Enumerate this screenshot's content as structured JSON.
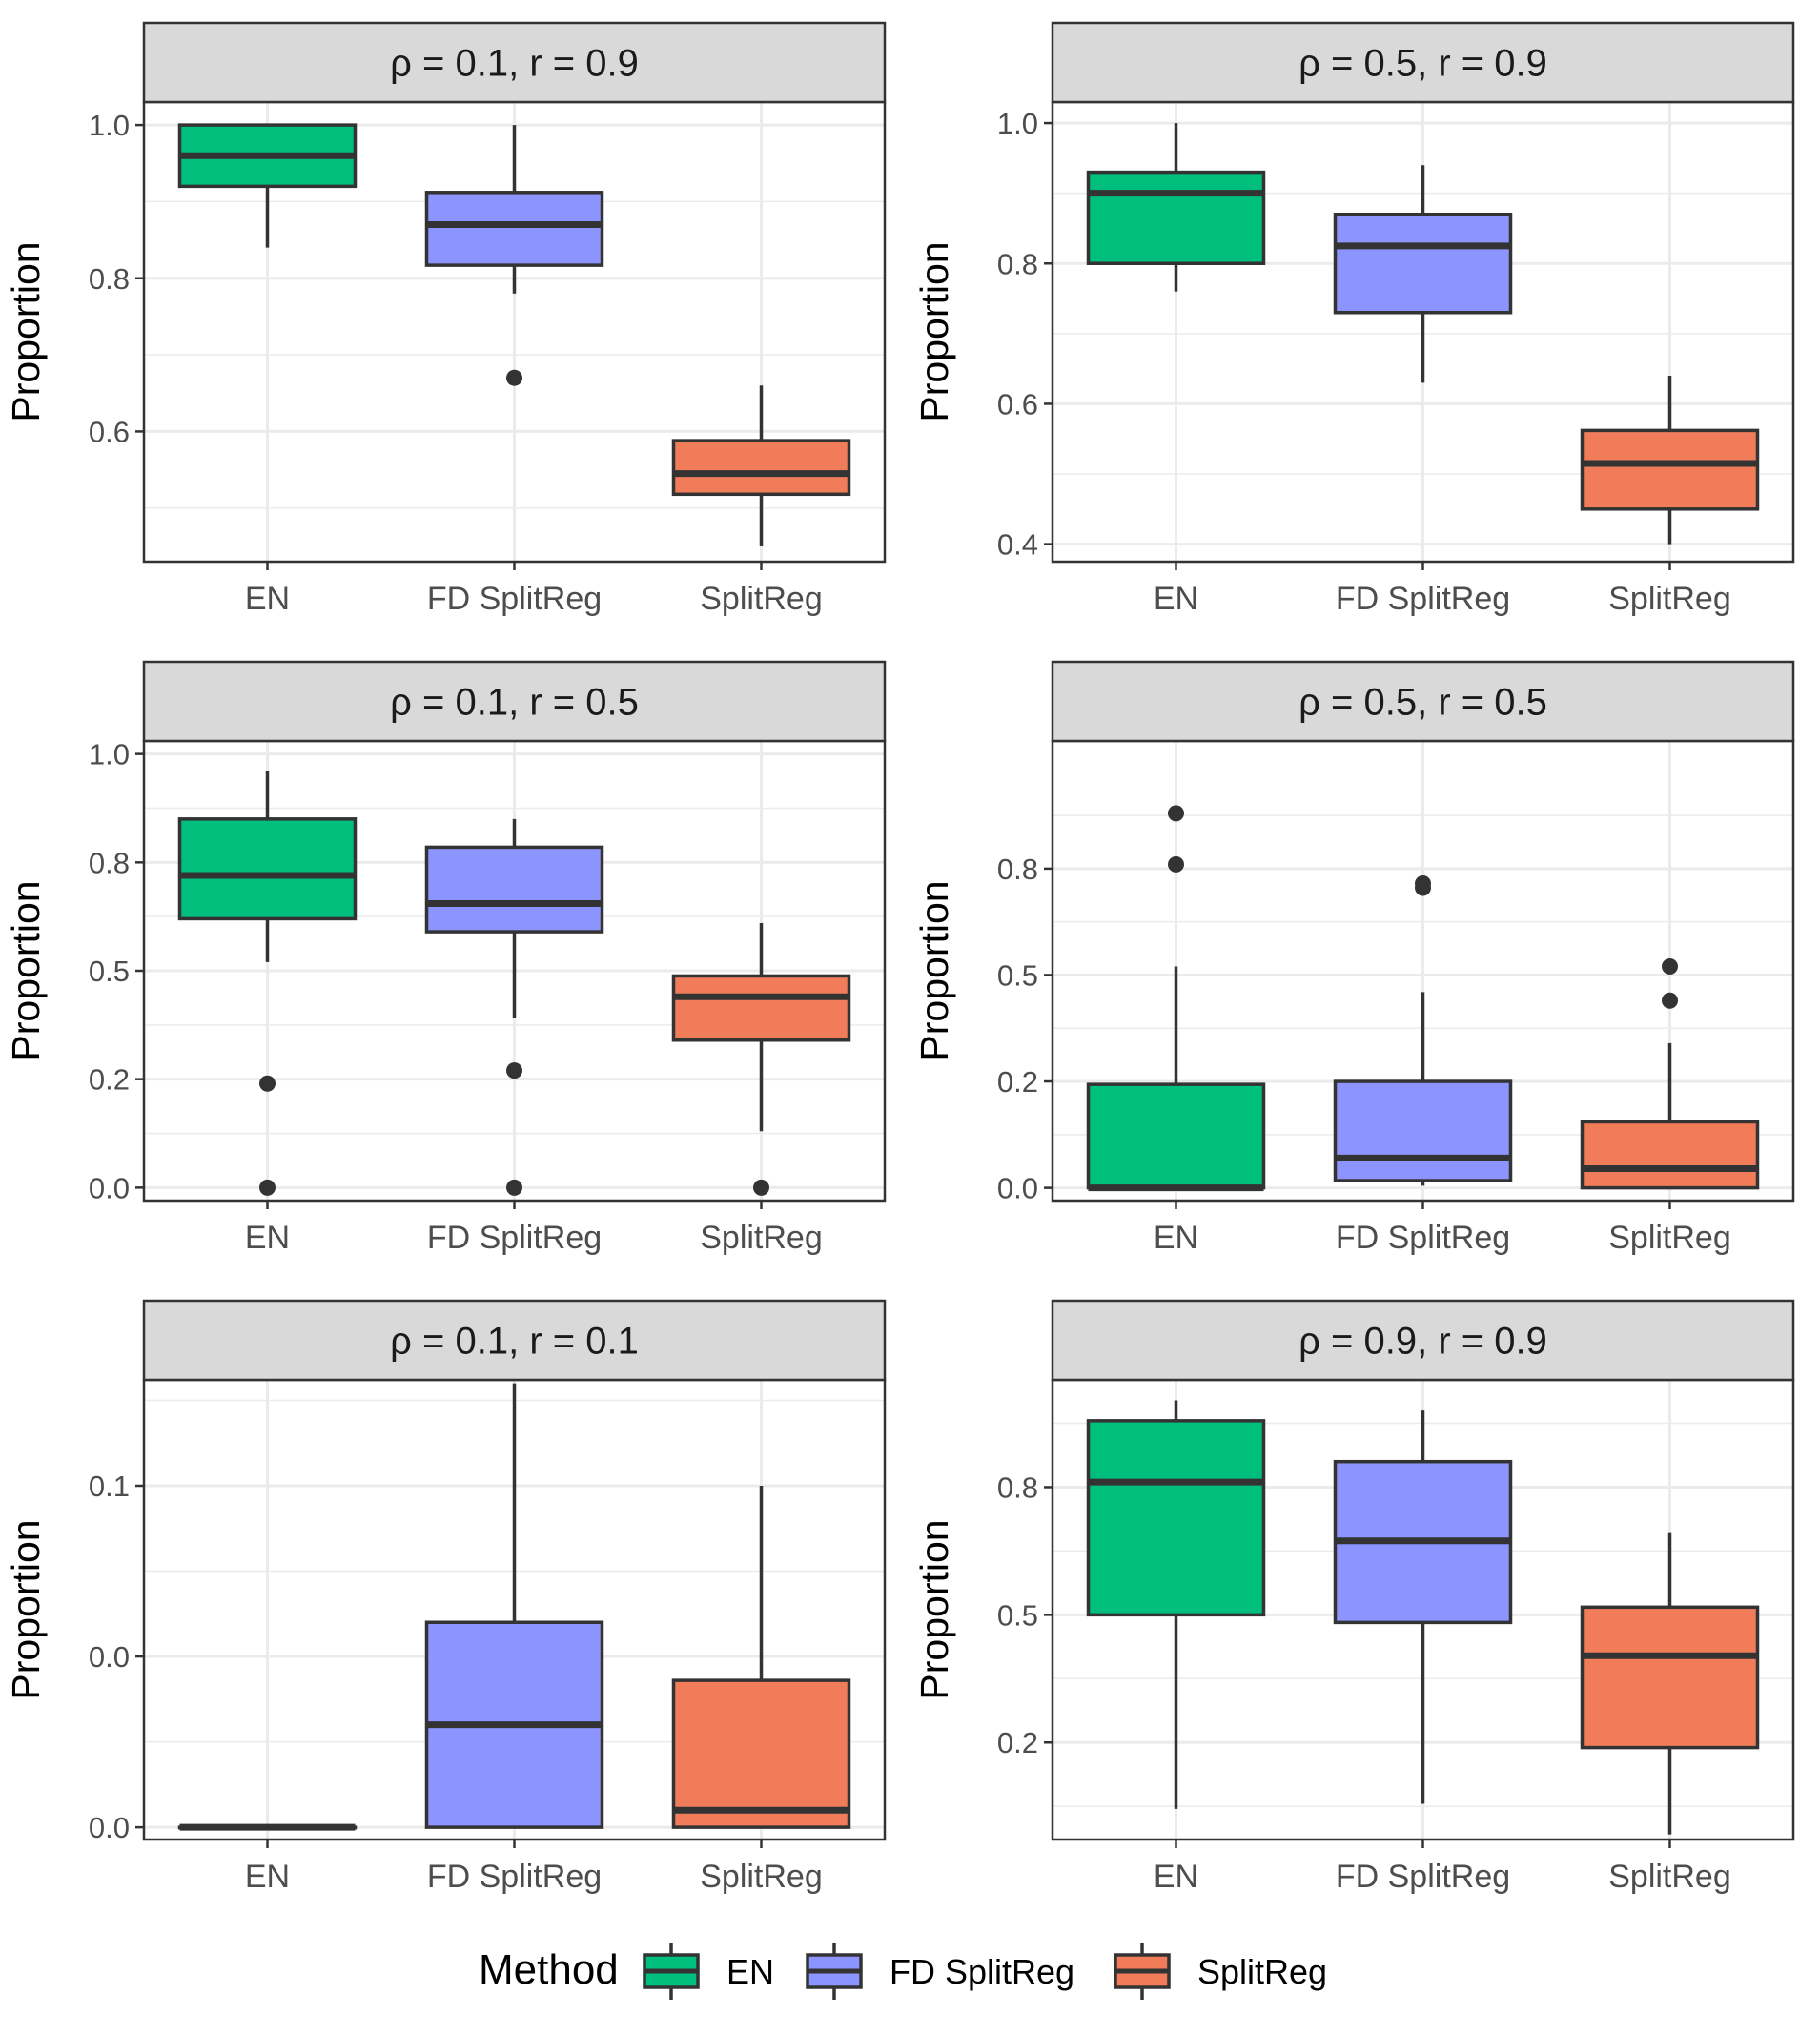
{
  "chart_data": {
    "type": "boxplot",
    "ylabel": "Proportion",
    "categories": [
      "EN",
      "FD SplitReg",
      "SplitReg"
    ],
    "colors": {
      "EN": "#00BF7D",
      "FD SplitReg": "#8C94FF",
      "SplitReg": "#F07C5A",
      "strip_bg": "#D9D9D9",
      "grid": "#EBEBEB",
      "ink": "#333333"
    },
    "legend": {
      "title": "Method",
      "entries": [
        "EN",
        "FD SplitReg",
        "SplitReg"
      ],
      "position": "bottom"
    },
    "panels": [
      {
        "title": "ρ = 0.1,  r = 0.9",
        "ylim": [
          0.43,
          1.03
        ],
        "ticks": [
          {
            "v": 0.6,
            "label": "0.6"
          },
          {
            "v": 0.8,
            "label": "0.8"
          },
          {
            "v": 1.0,
            "label": "1.0"
          }
        ],
        "minor": [
          0.5,
          0.7,
          0.9
        ],
        "boxes": [
          {
            "category": "EN",
            "whisker_low": 0.84,
            "q1": 0.92,
            "median": 0.96,
            "q3": 1.0,
            "whisker_high": 1.0,
            "outliers": []
          },
          {
            "category": "FD SplitReg",
            "whisker_low": 0.78,
            "q1": 0.817,
            "median": 0.87,
            "q3": 0.912,
            "whisker_high": 1.0,
            "outliers": [
              0.67
            ]
          },
          {
            "category": "SplitReg",
            "whisker_low": 0.45,
            "q1": 0.518,
            "median": 0.545,
            "q3": 0.588,
            "whisker_high": 0.66,
            "outliers": []
          }
        ]
      },
      {
        "title": "ρ = 0.5,  r = 0.9",
        "ylim": [
          0.375,
          1.03
        ],
        "ticks": [
          {
            "v": 0.4,
            "label": "0.4"
          },
          {
            "v": 0.6,
            "label": "0.6"
          },
          {
            "v": 0.8,
            "label": "0.8"
          },
          {
            "v": 1.0,
            "label": "1.0"
          }
        ],
        "minor": [
          0.5,
          0.7,
          0.9
        ],
        "boxes": [
          {
            "category": "EN",
            "whisker_low": 0.76,
            "q1": 0.8,
            "median": 0.9,
            "q3": 0.93,
            "whisker_high": 1.0,
            "outliers": []
          },
          {
            "category": "FD SplitReg",
            "whisker_low": 0.63,
            "q1": 0.73,
            "median": 0.825,
            "q3": 0.87,
            "whisker_high": 0.94,
            "outliers": []
          },
          {
            "category": "SplitReg",
            "whisker_low": 0.4,
            "q1": 0.45,
            "median": 0.515,
            "q3": 0.562,
            "whisker_high": 0.64,
            "outliers": []
          }
        ]
      },
      {
        "title": "ρ = 0.1,  r = 0.5",
        "ylim": [
          -0.03,
          1.03
        ],
        "ticks": [
          {
            "v": 0.0,
            "label": "0.0"
          },
          {
            "v": 0.25,
            "label": "0.2"
          },
          {
            "v": 0.5,
            "label": "0.5"
          },
          {
            "v": 0.75,
            "label": "0.8"
          },
          {
            "v": 1.0,
            "label": "1.0"
          }
        ],
        "minor": [
          0.125,
          0.375,
          0.625,
          0.875
        ],
        "boxes": [
          {
            "category": "EN",
            "whisker_low": 0.52,
            "q1": 0.62,
            "median": 0.72,
            "q3": 0.85,
            "whisker_high": 0.96,
            "outliers": [
              0.0,
              0.24
            ]
          },
          {
            "category": "FD SplitReg",
            "whisker_low": 0.39,
            "q1": 0.59,
            "median": 0.655,
            "q3": 0.785,
            "whisker_high": 0.85,
            "outliers": [
              0.0,
              0.27
            ]
          },
          {
            "category": "SplitReg",
            "whisker_low": 0.13,
            "q1": 0.34,
            "median": 0.44,
            "q3": 0.488,
            "whisker_high": 0.61,
            "outliers": [
              0.0
            ]
          }
        ]
      },
      {
        "title": "ρ = 0.5,  r = 0.5",
        "ylim": [
          -0.03,
          1.05
        ],
        "ticks": [
          {
            "v": 0.0,
            "label": "0.0"
          },
          {
            "v": 0.25,
            "label": "0.2"
          },
          {
            "v": 0.5,
            "label": "0.5"
          },
          {
            "v": 0.75,
            "label": "0.8"
          }
        ],
        "minor": [
          0.125,
          0.375,
          0.625,
          0.875
        ],
        "boxes": [
          {
            "category": "EN",
            "whisker_low": 0.0,
            "q1": 0.0,
            "median": 0.0,
            "q3": 0.243,
            "whisker_high": 0.52,
            "outliers": [
              0.76,
              0.88
            ]
          },
          {
            "category": "FD SplitReg",
            "whisker_low": 0.005,
            "q1": 0.017,
            "median": 0.07,
            "q3": 0.25,
            "whisker_high": 0.46,
            "outliers": [
              0.705,
              0.715
            ]
          },
          {
            "category": "SplitReg",
            "whisker_low": 0.0,
            "q1": 0.0,
            "median": 0.045,
            "q3": 0.155,
            "whisker_high": 0.34,
            "outliers": [
              0.44,
              0.52
            ]
          }
        ]
      },
      {
        "title": "ρ = 0.1,  r = 0.1",
        "ylim": [
          -0.0018,
          0.0655
        ],
        "ticks": [
          {
            "v": 0.0,
            "label": "0.0"
          },
          {
            "v": 0.025,
            "label": "0.0"
          },
          {
            "v": 0.05,
            "label": "0.1"
          }
        ],
        "minor": [
          0.0125,
          0.0375,
          0.0625
        ],
        "boxes": [
          {
            "category": "EN",
            "whisker_low": 0.0,
            "q1": 0.0,
            "median": 0.0,
            "q3": 0.0,
            "whisker_high": 0.0,
            "outliers": []
          },
          {
            "category": "FD SplitReg",
            "whisker_low": 0.0,
            "q1": 0.0,
            "median": 0.015,
            "q3": 0.03,
            "whisker_high": 0.065,
            "outliers": []
          },
          {
            "category": "SplitReg",
            "whisker_low": 0.0,
            "q1": 0.0,
            "median": 0.0025,
            "q3": 0.0215,
            "whisker_high": 0.05,
            "outliers": []
          }
        ]
      },
      {
        "title": "ρ = 0.9,  r = 0.9",
        "ylim": [
          0.06,
          0.96
        ],
        "ticks": [
          {
            "v": 0.25,
            "label": "0.2"
          },
          {
            "v": 0.5,
            "label": "0.5"
          },
          {
            "v": 0.75,
            "label": "0.8"
          }
        ],
        "minor": [
          0.125,
          0.375,
          0.625,
          0.875
        ],
        "boxes": [
          {
            "category": "EN",
            "whisker_low": 0.12,
            "q1": 0.5,
            "median": 0.76,
            "q3": 0.88,
            "whisker_high": 0.92,
            "outliers": []
          },
          {
            "category": "FD SplitReg",
            "whisker_low": 0.13,
            "q1": 0.485,
            "median": 0.645,
            "q3": 0.8,
            "whisker_high": 0.9,
            "outliers": []
          },
          {
            "category": "SplitReg",
            "whisker_low": 0.07,
            "q1": 0.24,
            "median": 0.42,
            "q3": 0.515,
            "whisker_high": 0.66,
            "outliers": []
          }
        ]
      }
    ]
  }
}
